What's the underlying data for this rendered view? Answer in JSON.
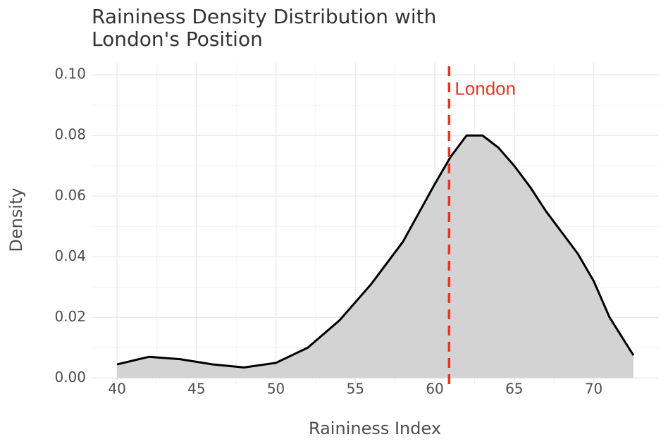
{
  "chart_data": {
    "type": "density",
    "title": [
      "Raininess Density Distribution with",
      "London's Position"
    ],
    "x_label": "Raininess Index",
    "y_label": "Density",
    "x": [
      40,
      42,
      44,
      46,
      48,
      50,
      52,
      54,
      55,
      56,
      58,
      60,
      61,
      62,
      63,
      64,
      65,
      66,
      67,
      68,
      69,
      70,
      71,
      72.5
    ],
    "values": [
      0.0045,
      0.007,
      0.0062,
      0.0045,
      0.0035,
      0.005,
      0.01,
      0.019,
      0.025,
      0.031,
      0.045,
      0.064,
      0.073,
      0.08,
      0.08,
      0.076,
      0.07,
      0.063,
      0.055,
      0.048,
      0.041,
      0.032,
      0.02,
      0.0075
    ],
    "fill": "#d3d3d3",
    "color": "#000000",
    "xlim": [
      38.4,
      74.1
    ],
    "ylim": [
      -0.002,
      0.104
    ],
    "xticks": [
      40,
      45,
      50,
      55,
      60,
      65,
      70
    ],
    "yticks": [
      {
        "value": 0,
        "label": "0.00"
      },
      {
        "value": 0.02,
        "label": "0.02"
      },
      {
        "value": 0.04,
        "label": "0.04"
      },
      {
        "value": 0.06,
        "label": "0.06"
      },
      {
        "value": 0.08,
        "label": "0.08"
      },
      {
        "value": 0.1,
        "label": "0.10"
      }
    ],
    "grid": true,
    "vline": {
      "x": 60.9,
      "label": "London",
      "color": "#e8352a",
      "label_y": 0.095
    }
  }
}
